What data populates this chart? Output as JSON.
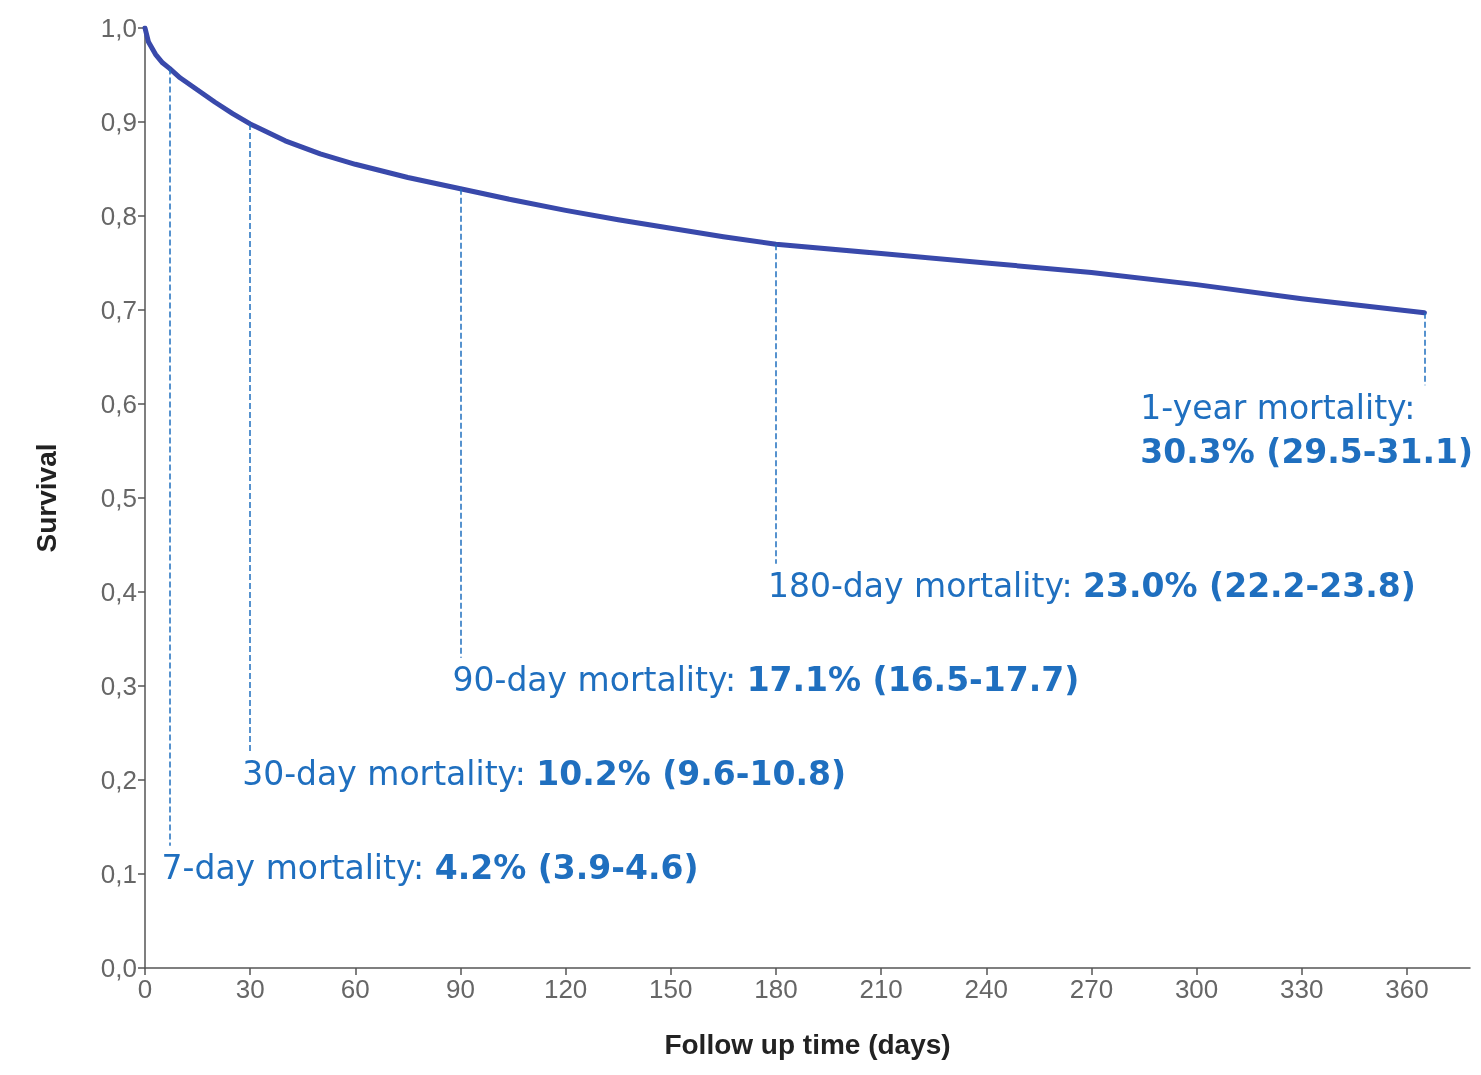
{
  "chart_data": {
    "type": "line",
    "xlabel": "Follow up time (days)",
    "ylabel": "Survival",
    "series": [
      {
        "color": "#3949ab",
        "x": [
          0,
          1,
          3,
          5,
          7,
          10,
          15,
          20,
          25,
          30,
          40,
          50,
          60,
          75,
          90,
          105,
          120,
          135,
          150,
          165,
          180,
          210,
          240,
          270,
          300,
          330,
          365
        ],
        "values": [
          1.0,
          0.985,
          0.972,
          0.963,
          0.957,
          0.947,
          0.934,
          0.921,
          0.909,
          0.898,
          0.88,
          0.866,
          0.855,
          0.841,
          0.829,
          0.817,
          0.806,
          0.796,
          0.787,
          0.778,
          0.77,
          0.76,
          0.75,
          0.74,
          0.727,
          0.712,
          0.697
        ]
      }
    ],
    "xlim": [
      0,
      378
    ],
    "xticks": [
      0,
      30,
      60,
      90,
      120,
      150,
      180,
      210,
      240,
      270,
      300,
      330,
      360
    ],
    "ylim": [
      0,
      1
    ],
    "yticks": [
      {
        "value": 0,
        "label": "0,0"
      },
      {
        "value": 0.1,
        "label": "0,1"
      },
      {
        "value": 0.2,
        "label": "0,2"
      },
      {
        "value": 0.3,
        "label": "0,3"
      },
      {
        "value": 0.4,
        "label": "0,4"
      },
      {
        "value": 0.5,
        "label": "0,5"
      },
      {
        "value": 0.6,
        "label": "0,6"
      },
      {
        "value": 0.7,
        "label": "0,7"
      },
      {
        "value": 0.8,
        "label": "0,8"
      },
      {
        "value": 0.9,
        "label": "0,9"
      },
      {
        "value": 1,
        "label": "1,0"
      }
    ],
    "grid": false,
    "marker": "none",
    "line_style": "solid",
    "annotations": [
      {
        "text": "7-day mortality: 4.2% (3.9-4.6)",
        "x": 7,
        "y": 0.957
      },
      {
        "text": "30-day mortality: 10.2% (9.6-10.8)",
        "x": 30,
        "y": 0.898
      },
      {
        "text": "90-day mortality: 17.1% (16.5-17.7)",
        "x": 90,
        "y": 0.829
      },
      {
        "text": "180-day mortality: 23.0% (22.2-23.8)",
        "x": 180,
        "y": 0.77
      },
      {
        "text": "1-year mortality: 30.3% (29.5-31.1)",
        "x": 365,
        "y": 0.697
      }
    ]
  }
}
